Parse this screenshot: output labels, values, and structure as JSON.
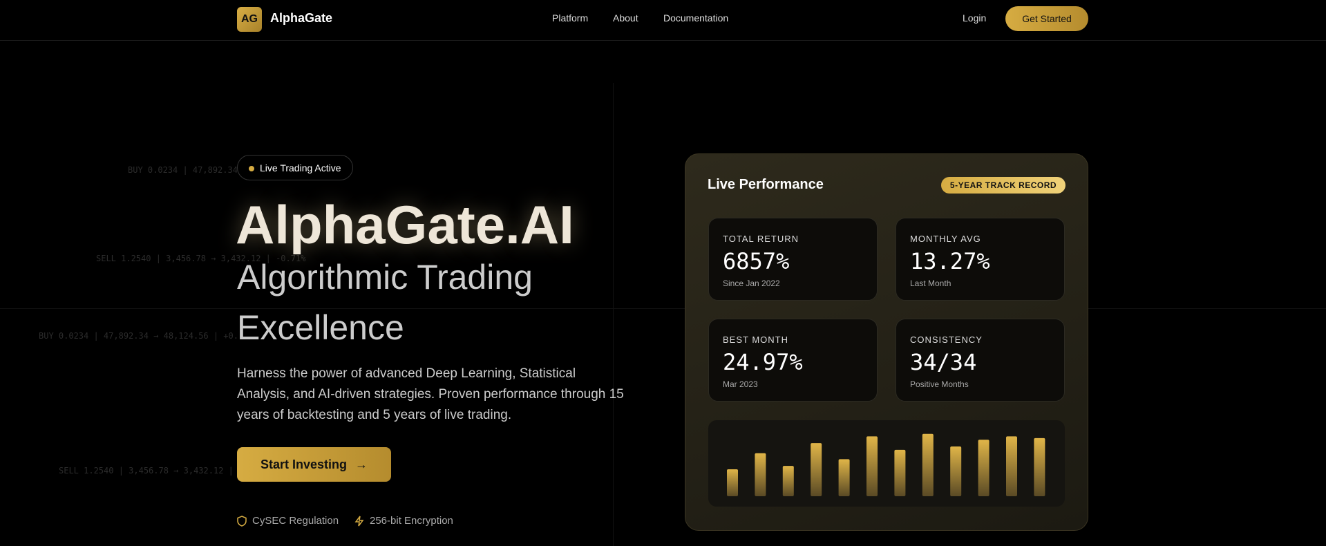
{
  "nav": {
    "logo": "AG",
    "brand": "AlphaGate",
    "links": [
      "Platform",
      "About",
      "Documentation"
    ],
    "login": "Login",
    "cta": "Get Started"
  },
  "ticker": [
    "BUY 0.0234 | 47,892.34",
    "SELL 1.2540 | 3,456.78 → 3,432.12 | -0.71%",
    "BUY 0.0234 | 47,892.34 → 48,124.56 | +0.",
    "SELL 1.2540 | 3,456.78 → 3,432.12 |"
  ],
  "hero": {
    "badge": "Live Trading Active",
    "title": "AlphaGate.AI",
    "subtitle_lines": [
      "Algorithmic Trading",
      "Excellence"
    ],
    "description": "Harness the power of advanced Deep Learning, Statistical Analysis, and AI-driven strategies. Proven performance through 15 years of backtesting and 5 years of live trading.",
    "cta": "Start Investing",
    "features": [
      "CySEC Regulation",
      "256-bit Encryption"
    ]
  },
  "performance": {
    "title": "Live Performance",
    "badge": "5-YEAR TRACK RECORD",
    "stats": [
      {
        "label": "TOTAL RETURN",
        "value": "6857%",
        "sub": "Since Jan 2022"
      },
      {
        "label": "MONTHLY AVG",
        "value": "13.27%",
        "sub": "Last Month"
      },
      {
        "label": "BEST MONTH",
        "value": "24.97%",
        "sub": "Mar 2023"
      },
      {
        "label": "CONSISTENCY",
        "value": "34/34",
        "sub": "Positive Months"
      }
    ],
    "bars": [
      32,
      51,
      36,
      63,
      44,
      71,
      55,
      74,
      59,
      67,
      71,
      69
    ]
  }
}
